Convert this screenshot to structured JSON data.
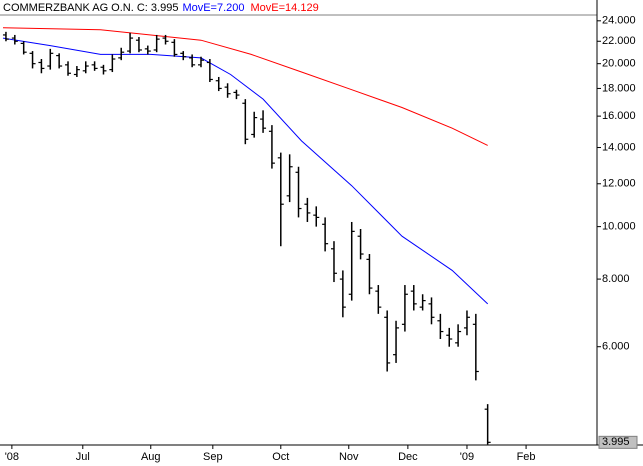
{
  "chart_data": {
    "type": "ohlc",
    "title": "COMMERZBANK AG O.N. C: 3.995",
    "log_scale": true,
    "grid": false,
    "color": "#000000",
    "x": [
      1,
      4,
      7,
      10,
      13,
      16,
      19,
      22,
      25,
      28,
      31,
      34,
      37,
      40,
      43,
      46,
      49,
      52,
      55,
      58,
      61,
      64,
      67,
      70,
      73,
      76,
      79,
      82,
      85,
      88,
      91,
      94,
      97,
      100,
      103,
      106,
      109,
      112,
      115,
      118,
      121,
      124,
      127,
      130,
      133,
      136,
      139,
      142,
      145,
      148,
      151,
      154,
      157,
      160,
      164
    ],
    "open": [
      22.6,
      22.3,
      21.8,
      20.9,
      20.1,
      19.8,
      20.7,
      19.9,
      19.1,
      19.4,
      19.9,
      19.7,
      19.5,
      20.5,
      21.1,
      22.1,
      21.3,
      21.2,
      22.3,
      21.9,
      20.9,
      20.5,
      19.9,
      20.1,
      18.6,
      18.1,
      17.7,
      16.9,
      14.8,
      15.8,
      15.0,
      13.4,
      11.4,
      12.6,
      11.0,
      10.5,
      10.1,
      9.1,
      8.0,
      7.5,
      9.6,
      8.7,
      7.6,
      6.8,
      5.8,
      6.6,
      7.6,
      7.1,
      7.2,
      6.7,
      6.3,
      6.1,
      6.5,
      6.6,
      4.6
    ],
    "high": [
      22.9,
      22.6,
      22.0,
      21.1,
      20.4,
      21.3,
      20.9,
      20.2,
      19.8,
      20.2,
      20.2,
      19.9,
      20.8,
      21.4,
      22.8,
      22.4,
      21.6,
      22.6,
      22.6,
      22.2,
      21.1,
      20.8,
      20.6,
      20.4,
      18.9,
      18.4,
      17.9,
      17.2,
      16.3,
      16.4,
      15.4,
      13.7,
      13.6,
      12.9,
      11.3,
      10.9,
      10.4,
      9.4,
      8.3,
      10.2,
      9.9,
      8.9,
      7.8,
      7.0,
      6.7,
      7.8,
      7.8,
      7.5,
      7.4,
      6.9,
      6.5,
      6.6,
      7.0,
      6.9,
      4.7
    ],
    "low": [
      22.0,
      21.7,
      20.8,
      19.6,
      19.2,
      19.5,
      19.6,
      19.0,
      18.9,
      19.2,
      19.4,
      19.1,
      19.3,
      20.3,
      20.9,
      21.0,
      20.8,
      21.0,
      21.7,
      20.6,
      20.3,
      19.7,
      19.7,
      18.5,
      17.8,
      17.3,
      17.2,
      14.2,
      14.6,
      14.9,
      12.8,
      9.2,
      11.1,
      10.4,
      10.2,
      10.0,
      9.0,
      7.9,
      6.8,
      7.3,
      8.7,
      7.5,
      6.9,
      5.4,
      5.6,
      6.4,
      7.0,
      7.0,
      6.6,
      6.2,
      6.0,
      6.0,
      6.3,
      5.2,
      3.96
    ],
    "close": [
      22.2,
      22.0,
      21.0,
      20.0,
      19.6,
      20.9,
      19.8,
      19.2,
      19.5,
      19.8,
      19.6,
      19.4,
      20.4,
      21.0,
      22.3,
      21.2,
      21.1,
      22.2,
      22.0,
      20.8,
      20.6,
      19.9,
      20.3,
      18.7,
      18.0,
      17.6,
      17.5,
      14.5,
      15.9,
      15.2,
      13.1,
      11.0,
      12.9,
      10.8,
      10.6,
      10.4,
      9.3,
      8.2,
      7.1,
      9.8,
      8.9,
      7.7,
      7.1,
      5.6,
      6.5,
      7.5,
      7.2,
      7.3,
      6.8,
      6.4,
      6.2,
      6.4,
      6.8,
      5.4,
      3.995
    ],
    "series": [
      {
        "name": "MovE=7.200",
        "color": "#0000ff",
        "x": [
          0,
          16,
          33,
          50,
          67,
          77,
          88,
          101,
          118,
          135,
          152,
          164
        ],
        "values": [
          22.3,
          21.6,
          20.8,
          20.8,
          20.5,
          19.1,
          17.2,
          14.4,
          11.9,
          9.6,
          8.3,
          7.2
        ]
      },
      {
        "name": "MovE=14.129",
        "color": "#ff0000",
        "x": [
          0,
          33,
          67,
          84,
          101,
          118,
          135,
          152,
          164
        ],
        "values": [
          23.3,
          23.1,
          22.1,
          20.8,
          19.3,
          17.9,
          16.6,
          15.2,
          14.129
        ]
      }
    ],
    "xlim": [
      0,
      201
    ],
    "xticks": [
      {
        "value": 3,
        "label": "'08"
      },
      {
        "value": 27,
        "label": "Jul"
      },
      {
        "value": 50,
        "label": "Aug"
      },
      {
        "value": 71,
        "label": "Sep"
      },
      {
        "value": 94,
        "label": "Oct"
      },
      {
        "value": 117,
        "label": "Nov"
      },
      {
        "value": 137,
        "label": "Dec"
      },
      {
        "value": 157,
        "label": "'09"
      },
      {
        "value": 177,
        "label": "Feb"
      }
    ],
    "ylim": [
      3.95,
      24.6
    ],
    "yticks": [
      {
        "value": 24,
        "label": "24.000"
      },
      {
        "value": 22,
        "label": "22.000"
      },
      {
        "value": 20,
        "label": "20.000"
      },
      {
        "value": 18,
        "label": "18.000"
      },
      {
        "value": 16,
        "label": "16.000"
      },
      {
        "value": 14,
        "label": "14.000"
      },
      {
        "value": 12,
        "label": "12.000"
      },
      {
        "value": 10,
        "label": "10.000"
      },
      {
        "value": 8,
        "label": "8.000"
      },
      {
        "value": 6,
        "label": "6.000"
      }
    ],
    "last_price": {
      "value": 3.995,
      "label": "3.995"
    }
  }
}
